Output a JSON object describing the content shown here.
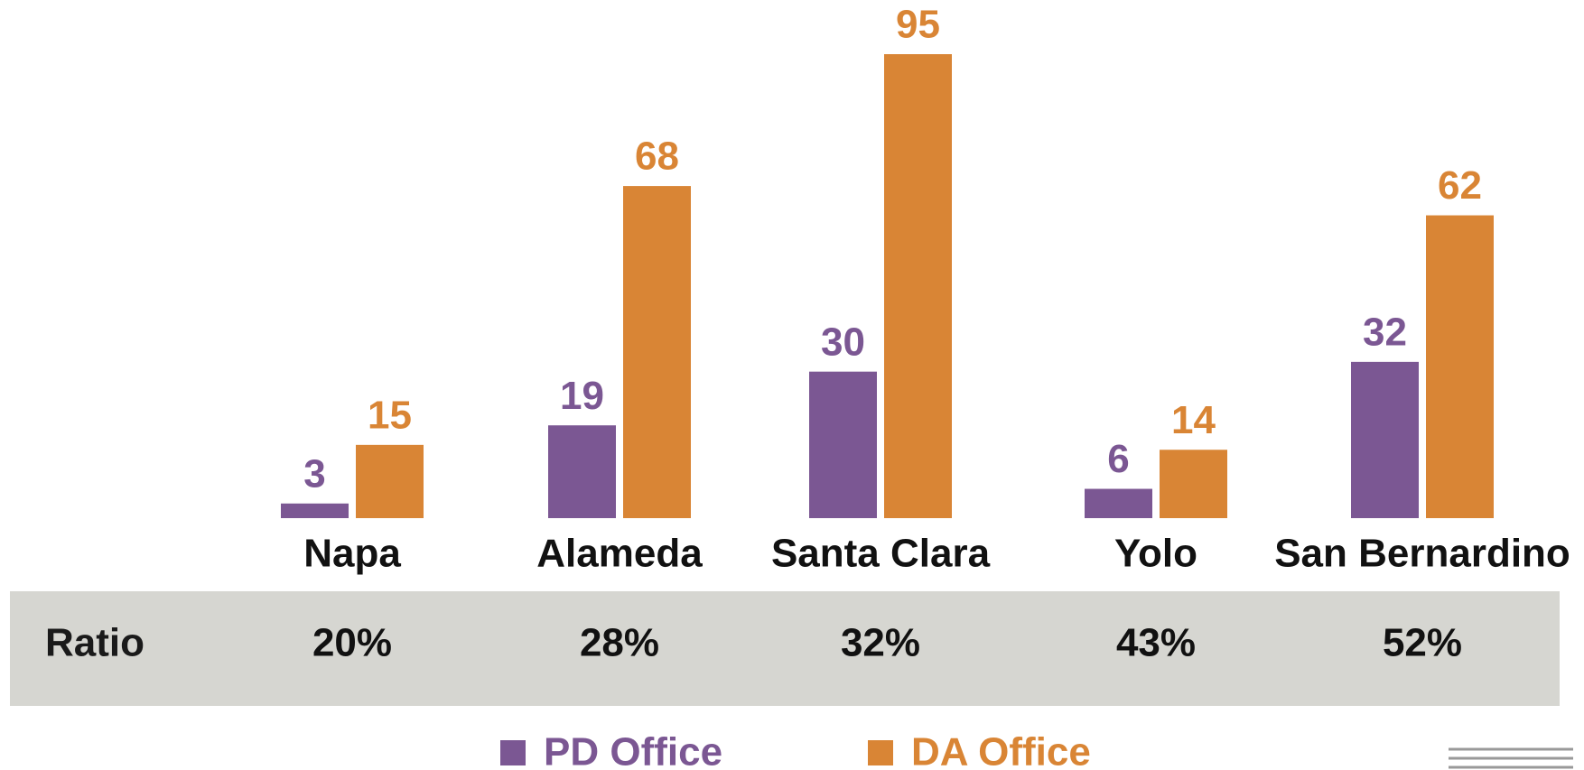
{
  "chart_data": {
    "type": "bar",
    "categories": [
      "Napa",
      "Alameda",
      "Santa Clara",
      "Yolo",
      "San Bernardino"
    ],
    "series": [
      {
        "name": "PD Office",
        "color": "#7b5793",
        "values": [
          3,
          19,
          30,
          6,
          32
        ]
      },
      {
        "name": "DA Office",
        "color": "#d98535",
        "values": [
          15,
          68,
          95,
          14,
          62
        ]
      }
    ],
    "table": {
      "label": "Ratio",
      "cells": [
        "20%",
        "28%",
        "32%",
        "43%",
        "52%"
      ]
    }
  }
}
